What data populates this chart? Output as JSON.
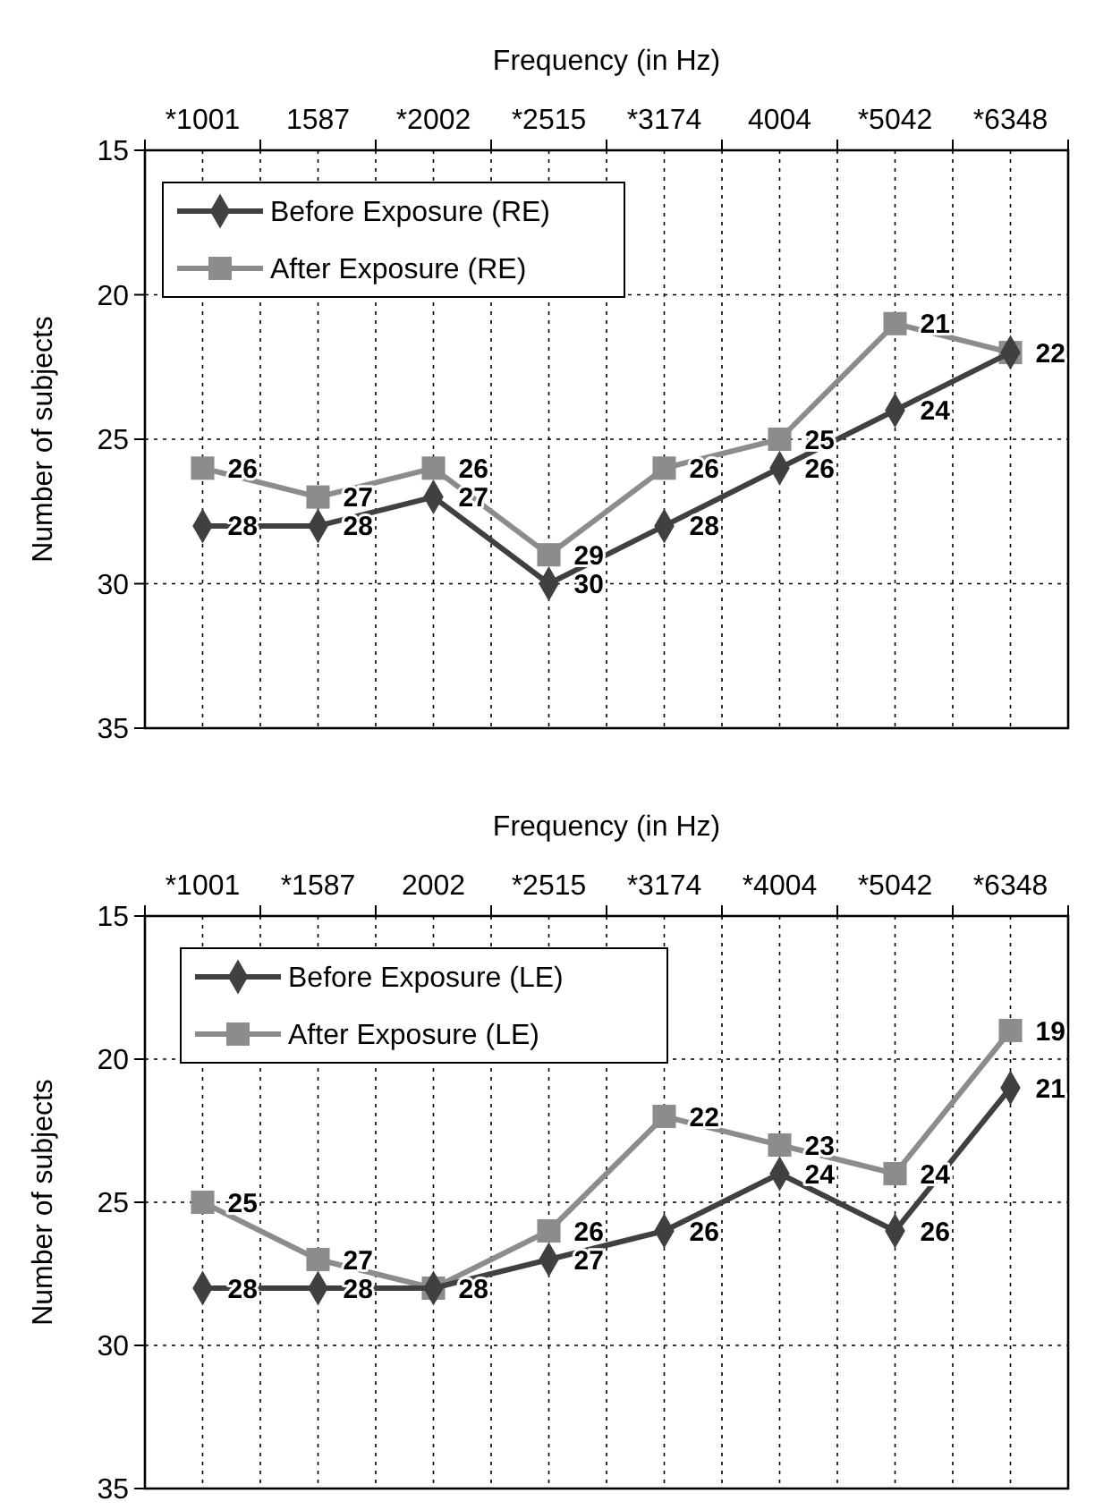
{
  "chart_data": [
    {
      "type": "line",
      "xlabel": "Frequency (in Hz)",
      "ylabel": "Number of subjects",
      "categories": [
        "*1001",
        "1587",
        "*2002",
        "*2515",
        "*3174",
        "4004",
        "*5042",
        "*6348"
      ],
      "ylim": [
        35,
        15
      ],
      "yticks": [
        15,
        20,
        25,
        30,
        35
      ],
      "grid": true,
      "legend": "top left",
      "series": [
        {
          "name": "Before Exposure (RE)",
          "color": "#404040",
          "marker": "diamond",
          "values": [
            28,
            28,
            27,
            30,
            28,
            26,
            24,
            22
          ],
          "value_labels": [
            "28",
            "28",
            "27",
            "30",
            "28",
            "26",
            "24",
            null
          ]
        },
        {
          "name": "After Exposure (RE)",
          "color": "#8c8c8c",
          "marker": "square",
          "values": [
            26,
            27,
            26,
            29,
            26,
            25,
            21,
            22
          ],
          "value_labels": [
            "26",
            "27",
            "26",
            "29",
            "26",
            "25",
            "21",
            "22"
          ]
        }
      ]
    },
    {
      "type": "line",
      "xlabel": "Frequency (in Hz)",
      "ylabel": "Number of subjects",
      "categories": [
        "*1001",
        "*1587",
        "2002",
        "*2515",
        "*3174",
        "*4004",
        "*5042",
        "*6348"
      ],
      "ylim": [
        35,
        15
      ],
      "yticks": [
        15,
        20,
        25,
        30,
        35
      ],
      "grid": true,
      "legend": "top left",
      "series": [
        {
          "name": "Before Exposure (LE)",
          "color": "#404040",
          "marker": "diamond",
          "values": [
            28,
            28,
            28,
            27,
            26,
            24,
            26,
            21
          ],
          "value_labels": [
            "28",
            "28",
            null,
            "27",
            "26",
            "24",
            "26",
            "21"
          ]
        },
        {
          "name": "After Exposure (LE)",
          "color": "#8c8c8c",
          "marker": "square",
          "values": [
            25,
            27,
            28,
            26,
            22,
            23,
            24,
            19
          ],
          "value_labels": [
            "25",
            "27",
            "28",
            "26",
            "22",
            "23",
            "24",
            "19"
          ]
        }
      ]
    }
  ]
}
